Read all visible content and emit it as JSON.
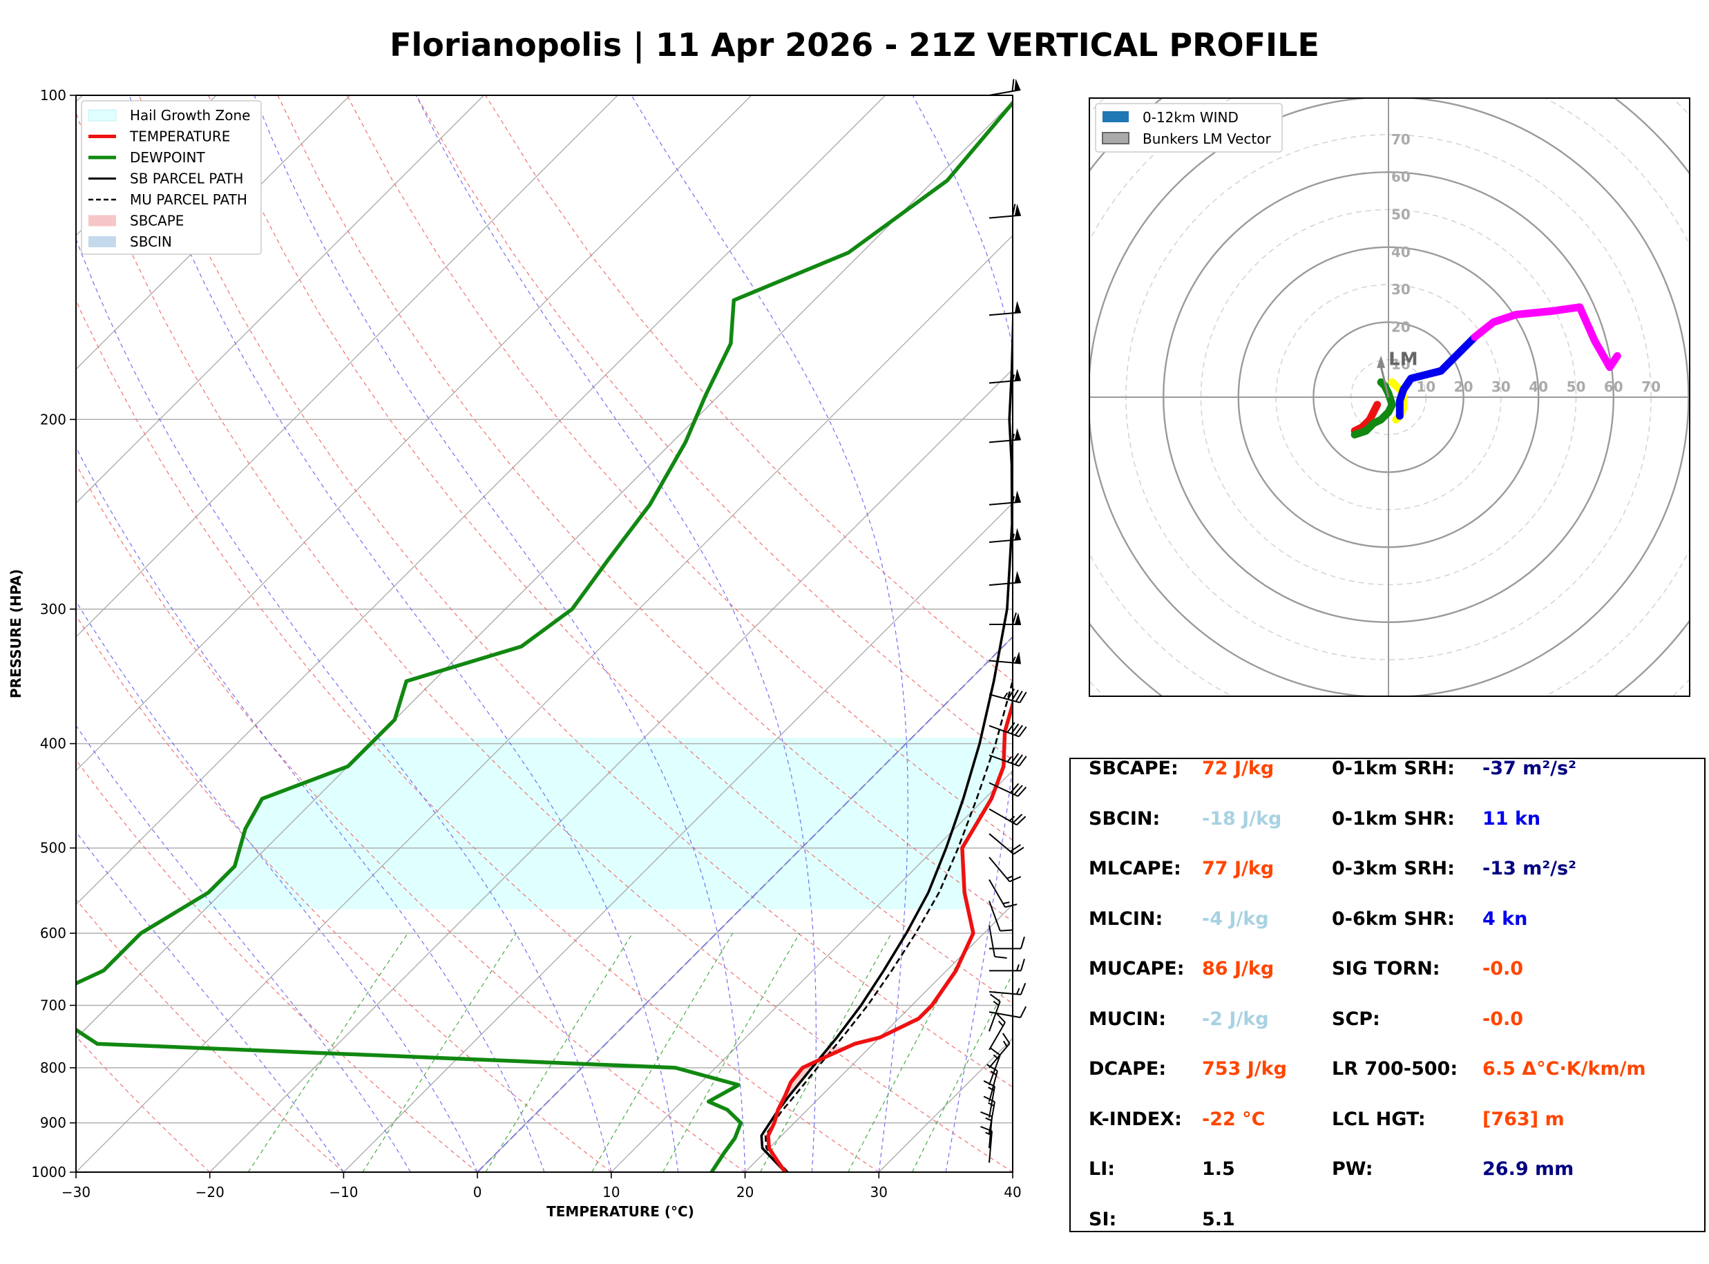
{
  "title": "Florianopolis | 11 Apr 2026 - 21Z VERTICAL PROFILE",
  "chart_data": [
    {
      "type": "line",
      "subtype": "skew-T log-P sounding",
      "xlabel": "TEMPERATURE (°C)",
      "ylabel": "PRESSURE (HPA)",
      "xlim": [
        -30,
        40
      ],
      "ylim": [
        1000,
        100
      ],
      "yscale": "log",
      "x_ticks": [
        "−30",
        "−20",
        "−10",
        "0",
        "10",
        "20",
        "30",
        "40"
      ],
      "y_ticks": [
        "100",
        "200",
        "300",
        "400",
        "500",
        "600",
        "700",
        "800",
        "900",
        "1000"
      ],
      "grid": true,
      "legend_position": "top-left",
      "legend": [
        "Hail Growth Zone",
        "TEMPERATURE",
        "DEWPOINT",
        "SB PARCEL PATH",
        "MU PARCEL PATH",
        "SBCAPE",
        "SBCIN"
      ],
      "colors": {
        "temperature": "#ee1111",
        "dewpoint": "#118811",
        "parcel": "#000000",
        "hail": "#e0ffff",
        "sbcape": "#f7c6c6",
        "sbcin": "#c5d9ec"
      },
      "series": [
        {
          "name": "TEMPERATURE",
          "points": [
            [
              1000,
              23
            ],
            [
              975,
              21.5
            ],
            [
              950,
              20
            ],
            [
              925,
              19
            ],
            [
              900,
              18.5
            ],
            [
              875,
              17.8
            ],
            [
              850,
              17.3
            ],
            [
              825,
              16.7
            ],
            [
              800,
              16.5
            ],
            [
              780,
              17.5
            ],
            [
              760,
              18.6
            ],
            [
              750,
              20
            ],
            [
              720,
              21.5
            ],
            [
              700,
              21.5
            ],
            [
              650,
              20.7
            ],
            [
              600,
              19.2
            ],
            [
              550,
              15.5
            ],
            [
              500,
              12
            ],
            [
              450,
              10.5
            ],
            [
              420,
              9
            ],
            [
              390,
              6.5
            ],
            [
              350,
              3.8
            ],
            [
              300,
              0.8
            ],
            [
              275,
              -0.5
            ],
            [
              250,
              -3.8
            ],
            [
              225,
              -5.9
            ],
            [
              200,
              -8
            ],
            [
              180,
              -9
            ],
            [
              160,
              -10
            ],
            [
              140,
              -12
            ],
            [
              120,
              -14.5
            ],
            [
              100,
              -17
            ]
          ]
        },
        {
          "name": "DEWPOINT",
          "points": [
            [
              1000,
              17.5
            ],
            [
              960,
              17
            ],
            [
              930,
              16.7
            ],
            [
              900,
              16
            ],
            [
              875,
              14
            ],
            [
              860,
              12
            ],
            [
              830,
              13
            ],
            [
              800,
              7
            ],
            [
              780,
              -15
            ],
            [
              760,
              -38
            ],
            [
              710,
              -44
            ],
            [
              700,
              -46
            ],
            [
              650,
              -43
            ],
            [
              600,
              -43
            ],
            [
              550,
              -41
            ],
            [
              520,
              -41
            ],
            [
              480,
              -43
            ],
            [
              450,
              -44
            ],
            [
              420,
              -40
            ],
            [
              380,
              -40
            ],
            [
              350,
              -42
            ],
            [
              325,
              -36
            ],
            [
              300,
              -35
            ],
            [
              270,
              -36
            ],
            [
              240,
              -37
            ],
            [
              210,
              -39
            ],
            [
              190,
              -41
            ],
            [
              170,
              -43
            ],
            [
              155,
              -46
            ],
            [
              140,
              -41
            ],
            [
              120,
              -39
            ],
            [
              100,
              -40
            ]
          ]
        },
        {
          "name": "SB PARCEL PATH",
          "points": [
            [
              1000,
              23
            ],
            [
              950,
              19.5
            ],
            [
              925,
              18.5
            ],
            [
              880,
              17.9
            ],
            [
              850,
              17.6
            ],
            [
              800,
              17.2
            ],
            [
              750,
              16.8
            ],
            [
              700,
              16.2
            ],
            [
              650,
              15.3
            ],
            [
              600,
              14.2
            ],
            [
              550,
              12.8
            ],
            [
              500,
              10.8
            ],
            [
              450,
              8.4
            ],
            [
              400,
              5.5
            ],
            [
              350,
              1.9
            ],
            [
              300,
              -2.5
            ],
            [
              250,
              -8.5
            ],
            [
              220,
              -13
            ],
            [
              200,
              -16.5
            ],
            [
              180,
              -20
            ],
            [
              160,
              -24
            ],
            [
              140,
              -28.5
            ],
            [
              120,
              -33.5
            ],
            [
              100,
              -39
            ]
          ]
        },
        {
          "name": "MU PARCEL PATH",
          "points": [
            [
              1000,
              23.2
            ],
            [
              950,
              19.8
            ],
            [
              925,
              18.8
            ],
            [
              880,
              18.2
            ],
            [
              850,
              18
            ],
            [
              800,
              17.6
            ],
            [
              750,
              17.2
            ],
            [
              700,
              16.7
            ],
            [
              650,
              15.9
            ],
            [
              600,
              14.9
            ],
            [
              550,
              13.6
            ],
            [
              500,
              11.7
            ],
            [
              450,
              9.4
            ],
            [
              400,
              6.7
            ],
            [
              350,
              3.3
            ],
            [
              300,
              -1
            ],
            [
              250,
              -7
            ],
            [
              220,
              -11.4
            ],
            [
              200,
              -14.8
            ],
            [
              180,
              -18.3
            ],
            [
              160,
              -22.3
            ],
            [
              140,
              -26.6
            ],
            [
              120,
              -31.4
            ],
            [
              100,
              -37
            ]
          ]
        }
      ],
      "hail_growth_zone": [
        570,
        395
      ],
      "wind_barbs": [
        {
          "p": 100,
          "dir": 260,
          "spd": 60
        },
        {
          "p": 130,
          "dir": 265,
          "spd": 60
        },
        {
          "p": 160,
          "dir": 265,
          "spd": 50
        },
        {
          "p": 185,
          "dir": 265,
          "spd": 55
        },
        {
          "p": 210,
          "dir": 265,
          "spd": 55
        },
        {
          "p": 240,
          "dir": 265,
          "spd": 55
        },
        {
          "p": 260,
          "dir": 265,
          "spd": 55
        },
        {
          "p": 285,
          "dir": 265,
          "spd": 50
        },
        {
          "p": 310,
          "dir": 270,
          "spd": 60
        },
        {
          "p": 335,
          "dir": 275,
          "spd": 55
        },
        {
          "p": 360,
          "dir": 285,
          "spd": 45
        },
        {
          "p": 385,
          "dir": 290,
          "spd": 40
        },
        {
          "p": 410,
          "dir": 290,
          "spd": 35
        },
        {
          "p": 435,
          "dir": 295,
          "spd": 30
        },
        {
          "p": 460,
          "dir": 300,
          "spd": 25
        },
        {
          "p": 485,
          "dir": 310,
          "spd": 20
        },
        {
          "p": 510,
          "dir": 320,
          "spd": 15
        },
        {
          "p": 535,
          "dir": 330,
          "spd": 15
        },
        {
          "p": 560,
          "dir": 340,
          "spd": 10
        },
        {
          "p": 590,
          "dir": 350,
          "spd": 10
        },
        {
          "p": 620,
          "dir": 270,
          "spd": 10
        },
        {
          "p": 650,
          "dir": 270,
          "spd": 15
        },
        {
          "p": 680,
          "dir": 275,
          "spd": 15
        },
        {
          "p": 710,
          "dir": 280,
          "spd": 10
        },
        {
          "p": 740,
          "dir": 200,
          "spd": 15
        },
        {
          "p": 770,
          "dir": 210,
          "spd": 15
        },
        {
          "p": 800,
          "dir": 220,
          "spd": 15
        },
        {
          "p": 830,
          "dir": 200,
          "spd": 15
        },
        {
          "p": 860,
          "dir": 195,
          "spd": 15
        },
        {
          "p": 890,
          "dir": 190,
          "spd": 15
        },
        {
          "p": 920,
          "dir": 190,
          "spd": 15
        },
        {
          "p": 950,
          "dir": 185,
          "spd": 15
        },
        {
          "p": 980,
          "dir": 185,
          "spd": 15
        }
      ]
    },
    {
      "type": "line",
      "subtype": "hodograph",
      "rings": [
        10,
        20,
        30,
        40,
        50,
        60,
        70
      ],
      "ring_labels": [
        "10",
        "20",
        "30",
        "40",
        "50",
        "60",
        "70"
      ],
      "legend_position": "top-left",
      "legend": [
        "0-12km WIND",
        "Bunkers LM Vector"
      ],
      "storm_motion_label": "LM",
      "storm_motion_vector": [
        -2,
        10
      ],
      "segments": [
        {
          "color": "#ee1111",
          "points": [
            [
              -9,
              -9
            ],
            [
              -7,
              -8
            ],
            [
              -5,
              -6
            ],
            [
              -4,
              -4
            ],
            [
              -3,
              -2
            ]
          ]
        },
        {
          "color": "#118811",
          "points": [
            [
              -9,
              -10
            ],
            [
              -6,
              -9
            ],
            [
              -4,
              -7
            ],
            [
              -2,
              -6
            ],
            [
              0,
              -4
            ],
            [
              1,
              -2
            ],
            [
              0,
              1
            ],
            [
              -1,
              3
            ],
            [
              -2,
              4
            ]
          ]
        },
        {
          "color": "#ffff00",
          "points": [
            [
              1,
              4
            ],
            [
              3,
              2
            ],
            [
              4,
              0
            ],
            [
              4,
              -3
            ],
            [
              3,
              -5
            ],
            [
              2,
              -6
            ]
          ]
        },
        {
          "color": "#0000ee",
          "points": [
            [
              3,
              -5
            ],
            [
              3,
              -1
            ],
            [
              4,
              2
            ],
            [
              6,
              5
            ],
            [
              10,
              6
            ],
            [
              14,
              7
            ],
            [
              20,
              13
            ],
            [
              23,
              16
            ]
          ]
        },
        {
          "color": "#ff00ff",
          "points": [
            [
              23,
              16
            ],
            [
              28,
              20
            ],
            [
              34,
              22
            ],
            [
              44,
              23
            ],
            [
              51,
              24
            ],
            [
              55,
              15
            ],
            [
              59,
              8
            ],
            [
              61,
              11
            ]
          ]
        }
      ]
    }
  ],
  "indices": {
    "left": [
      {
        "label": "SBCAPE:",
        "value": "72 J/kg",
        "color": "#ff4500"
      },
      {
        "label": "SBCIN:",
        "value": "-18 J/kg",
        "color": "#a8d2e2"
      },
      {
        "label": "MLCAPE:",
        "value": "77 J/kg",
        "color": "#ff4500"
      },
      {
        "label": "MLCIN:",
        "value": "-4 J/kg",
        "color": "#a8d2e2"
      },
      {
        "label": "MUCAPE:",
        "value": "86 J/kg",
        "color": "#ff4500"
      },
      {
        "label": "MUCIN:",
        "value": "-2 J/kg",
        "color": "#a8d2e2"
      },
      {
        "label": "DCAPE:",
        "value": "753 J/kg",
        "color": "#ff4500"
      },
      {
        "label": "K-INDEX:",
        "value": "-22 °C",
        "color": "#ff4500"
      },
      {
        "label": "LI:",
        "value": "1.5",
        "color": "#000000"
      },
      {
        "label": "SI:",
        "value": "5.1",
        "color": "#000000"
      }
    ],
    "right": [
      {
        "label": "0-1km SRH:",
        "value": "-37 m²/s²",
        "color": "#000080"
      },
      {
        "label": "0-1km SHR:",
        "value": "11 kn",
        "color": "#0000ee"
      },
      {
        "label": "0-3km SRH:",
        "value": "-13 m²/s²",
        "color": "#000080"
      },
      {
        "label": "0-6km SHR:",
        "value": "4 kn",
        "color": "#0000ee"
      },
      {
        "label": "SIG TORN:",
        "value": "-0.0",
        "color": "#ff4500"
      },
      {
        "label": "SCP:",
        "value": "-0.0",
        "color": "#ff4500"
      },
      {
        "label": "LR 700-500:",
        "value": "6.5 Δ°C·K/km/m",
        "color": "#ff4500"
      },
      {
        "label": "LCL HGT:",
        "value": "[763] m",
        "color": "#ff4500"
      },
      {
        "label": "PW:",
        "value": "26.9 mm",
        "color": "#000080"
      }
    ]
  }
}
